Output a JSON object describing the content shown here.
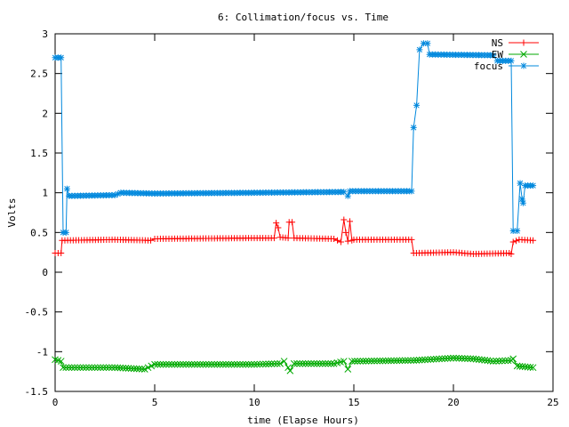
{
  "chart_data": {
    "type": "line",
    "title": "6: Collimation/focus vs. Time",
    "xlabel": "time (Elapse Hours)",
    "ylabel": "Volts",
    "xlim": [
      0,
      25
    ],
    "ylim": [
      -1.5,
      3
    ],
    "x_ticks": [
      "0",
      "5",
      "10",
      "15",
      "20",
      "25"
    ],
    "y_ticks": [
      "-1.5",
      "-1",
      "-0.5",
      "0",
      "0.5",
      "1",
      "1.5",
      "2",
      "2.5",
      "3"
    ],
    "grid": false,
    "legend_position": "top-right",
    "series": [
      {
        "name": "NS",
        "color": "#ff0000",
        "marker": "plus",
        "points": [
          [
            0,
            0.24
          ],
          [
            0.3,
            0.24
          ],
          [
            0.35,
            0.4
          ],
          [
            3,
            0.41
          ],
          [
            4.8,
            0.4
          ],
          [
            5,
            0.42
          ],
          [
            10,
            0.43
          ],
          [
            11,
            0.43
          ],
          [
            11.1,
            0.62
          ],
          [
            11.2,
            0.56
          ],
          [
            11.3,
            0.44
          ],
          [
            11.7,
            0.43
          ],
          [
            11.75,
            0.63
          ],
          [
            11.9,
            0.63
          ],
          [
            12,
            0.43
          ],
          [
            14,
            0.42
          ],
          [
            14.35,
            0.38
          ],
          [
            14.5,
            0.66
          ],
          [
            14.6,
            0.5
          ],
          [
            14.7,
            0.39
          ],
          [
            14.8,
            0.64
          ],
          [
            14.9,
            0.4
          ],
          [
            15,
            0.41
          ],
          [
            17.9,
            0.41
          ],
          [
            18,
            0.24
          ],
          [
            20,
            0.25
          ],
          [
            21,
            0.23
          ],
          [
            22.8,
            0.24
          ],
          [
            22.9,
            0.23
          ],
          [
            23,
            0.38
          ],
          [
            23.3,
            0.41
          ],
          [
            24,
            0.4
          ]
        ]
      },
      {
        "name": "EW",
        "color": "#00aa00",
        "marker": "x",
        "points": [
          [
            0,
            -1.1
          ],
          [
            0.3,
            -1.12
          ],
          [
            0.4,
            -1.2
          ],
          [
            3,
            -1.2
          ],
          [
            4.5,
            -1.22
          ],
          [
            5,
            -1.16
          ],
          [
            10,
            -1.16
          ],
          [
            11.3,
            -1.15
          ],
          [
            11.5,
            -1.12
          ],
          [
            11.7,
            -1.2
          ],
          [
            11.8,
            -1.24
          ],
          [
            12,
            -1.15
          ],
          [
            14,
            -1.15
          ],
          [
            14.5,
            -1.12
          ],
          [
            14.7,
            -1.22
          ],
          [
            14.9,
            -1.12
          ],
          [
            18,
            -1.11
          ],
          [
            20,
            -1.08
          ],
          [
            21,
            -1.09
          ],
          [
            22,
            -1.12
          ],
          [
            22.9,
            -1.11
          ],
          [
            23,
            -1.09
          ],
          [
            23.2,
            -1.18
          ],
          [
            24,
            -1.2
          ]
        ]
      },
      {
        "name": "focus",
        "color": "#0088dd",
        "marker": "star",
        "points": [
          [
            0,
            2.7
          ],
          [
            0.3,
            2.7
          ],
          [
            0.4,
            0.5
          ],
          [
            0.55,
            0.5
          ],
          [
            0.6,
            1.05
          ],
          [
            0.7,
            0.96
          ],
          [
            3,
            0.97
          ],
          [
            3.3,
            1.0
          ],
          [
            5,
            0.99
          ],
          [
            10,
            1.0
          ],
          [
            14.5,
            1.01
          ],
          [
            14.7,
            0.96
          ],
          [
            14.8,
            1.02
          ],
          [
            17.8,
            1.02
          ],
          [
            17.9,
            1.02
          ],
          [
            18.0,
            1.82
          ],
          [
            18.15,
            2.1
          ],
          [
            18.3,
            2.8
          ],
          [
            18.5,
            2.88
          ],
          [
            18.7,
            2.88
          ],
          [
            18.8,
            2.74
          ],
          [
            22,
            2.73
          ],
          [
            22.2,
            2.66
          ],
          [
            22.9,
            2.66
          ],
          [
            23.0,
            0.52
          ],
          [
            23.2,
            0.52
          ],
          [
            23.35,
            1.12
          ],
          [
            23.45,
            0.92
          ],
          [
            23.5,
            0.87
          ],
          [
            23.6,
            1.09
          ],
          [
            24,
            1.09
          ]
        ]
      }
    ]
  }
}
